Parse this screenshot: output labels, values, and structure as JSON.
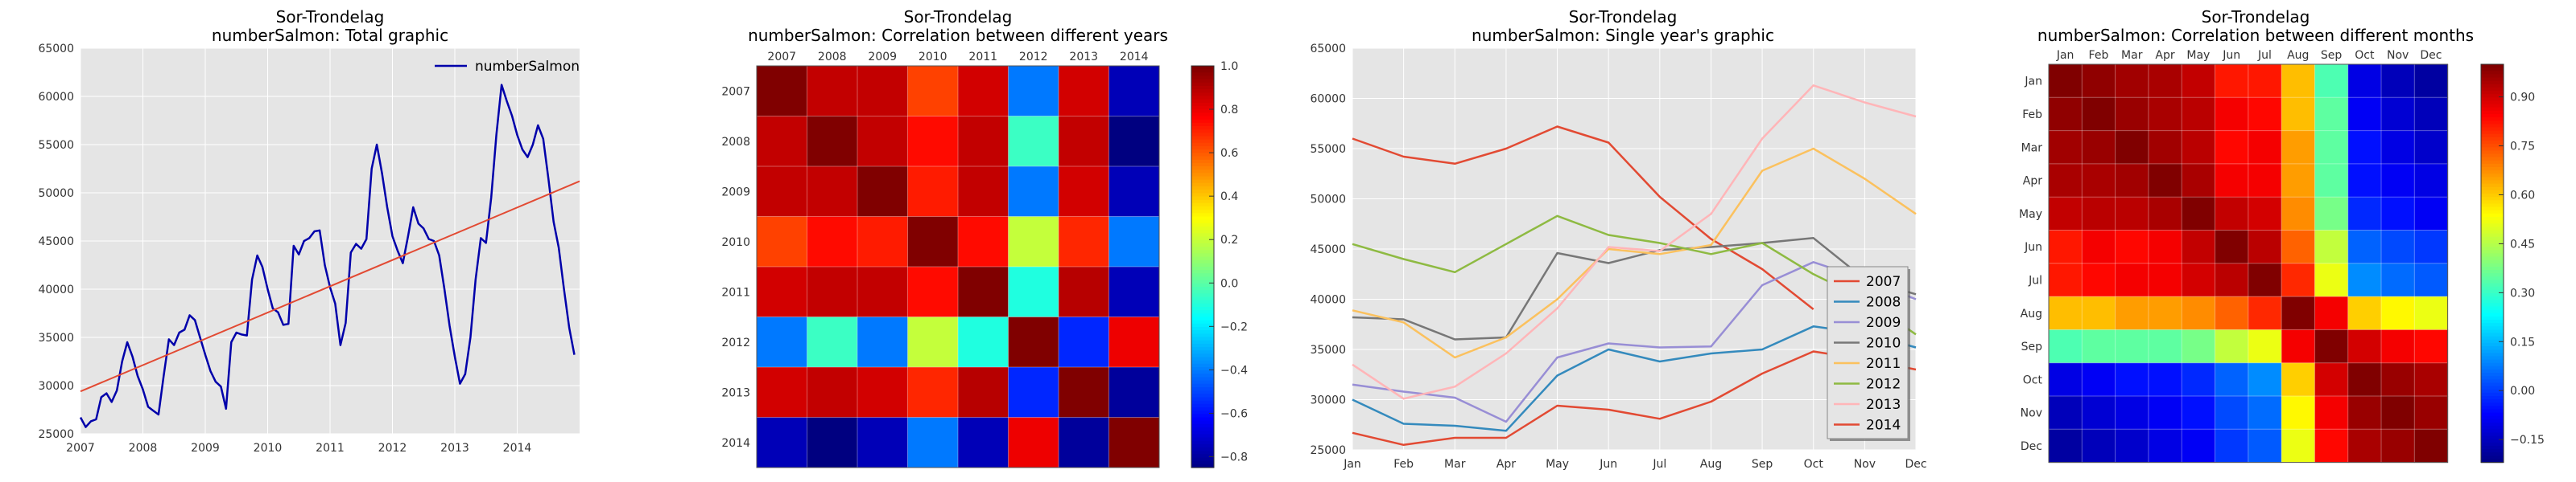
{
  "figure": {
    "panels": [
      {
        "title_line1": "Sor-Trondelag",
        "title_line2": "numberSalmon: Total graphic"
      },
      {
        "title_line1": "Sor-Trondelag",
        "title_line2": "numberSalmon: Correlation between different years"
      },
      {
        "title_line1": "Sor-Trondelag",
        "title_line2": "numberSalmon: Single year's graphic"
      },
      {
        "title_line1": "Sor-Trondelag",
        "title_line2": "numberSalmon: Correlation between different months"
      }
    ]
  },
  "chart_data": [
    {
      "type": "line",
      "title": "Sor-Trondelag\nnumberSalmon: Total graphic",
      "xlabel": "",
      "ylabel": "",
      "xlim": [
        2007,
        2015
      ],
      "ylim": [
        25000,
        65000
      ],
      "xticks": [
        "2007",
        "2008",
        "2009",
        "2010",
        "2011",
        "2012",
        "2013",
        "2014"
      ],
      "yticks": [
        "25000",
        "30000",
        "35000",
        "40000",
        "45000",
        "50000",
        "55000",
        "60000",
        "65000"
      ],
      "grid": true,
      "legend": {
        "position": "top-right",
        "entries": [
          "numberSalmon"
        ]
      },
      "colors": {
        "series": "#0000aa",
        "trend": "#e24a33",
        "background": "#e5e5e5"
      },
      "series": [
        {
          "name": "numberSalmon",
          "x_start": 2007,
          "step": 0.08333,
          "values": [
            26700,
            25700,
            26300,
            26500,
            28800,
            29200,
            28300,
            29500,
            32500,
            34500,
            33000,
            31000,
            29600,
            27800,
            27400,
            27000,
            31000,
            34800,
            34200,
            35500,
            35800,
            37300,
            36800,
            35000,
            33200,
            31500,
            30400,
            29900,
            27600,
            34500,
            35500,
            35300,
            35200,
            41000,
            43500,
            42300,
            40000,
            38000,
            37600,
            36300,
            36400,
            44500,
            43600,
            45000,
            45300,
            46000,
            46100,
            42500,
            40200,
            38500,
            34200,
            36500,
            43800,
            44700,
            44200,
            45200,
            52500,
            55000,
            52000,
            48500,
            45500,
            44000,
            42700,
            45500,
            48500,
            46800,
            46300,
            45200,
            45000,
            43500,
            40000,
            36200,
            33000,
            30200,
            31200,
            35000,
            41000,
            45300,
            44800,
            49500,
            56000,
            61200,
            59500,
            58000,
            56000,
            54500,
            53700,
            55000,
            57000,
            55600,
            51500,
            47000,
            44300,
            40000,
            36000,
            33200
          ]
        },
        {
          "name": "trend",
          "x": [
            2007,
            2015
          ],
          "values": [
            29400,
            51200
          ]
        }
      ]
    },
    {
      "type": "heatmap",
      "title": "Sor-Trondelag\nnumberSalmon: Correlation between different years",
      "columns": [
        "2007",
        "2008",
        "2009",
        "2010",
        "2011",
        "2012",
        "2013",
        "2014"
      ],
      "rows": [
        "2007",
        "2008",
        "2009",
        "2010",
        "2011",
        "2012",
        "2013",
        "2014"
      ],
      "colorbar": {
        "min": -0.85,
        "max": 1.0,
        "ticks": [
          "1.0",
          "0.8",
          "0.6",
          "0.4",
          "0.2",
          "0.0",
          "−0.2",
          "−0.4",
          "−0.6",
          "−0.8"
        ],
        "tick_values": [
          1.0,
          0.8,
          0.6,
          0.4,
          0.2,
          0.0,
          -0.2,
          -0.4,
          -0.6,
          -0.8
        ]
      },
      "values": [
        [
          1.0,
          0.88,
          0.88,
          0.65,
          0.85,
          -0.4,
          0.85,
          -0.75
        ],
        [
          0.88,
          1.0,
          0.88,
          0.75,
          0.88,
          -0.05,
          0.88,
          -0.85
        ],
        [
          0.88,
          0.88,
          1.0,
          0.72,
          0.88,
          -0.4,
          0.85,
          -0.75
        ],
        [
          0.65,
          0.75,
          0.72,
          1.0,
          0.75,
          0.2,
          0.7,
          -0.4
        ],
        [
          0.85,
          0.88,
          0.88,
          0.75,
          1.0,
          -0.1,
          0.9,
          -0.75
        ],
        [
          -0.4,
          -0.05,
          -0.4,
          0.2,
          -0.1,
          1.0,
          -0.55,
          0.8
        ],
        [
          0.85,
          0.88,
          0.85,
          0.7,
          0.9,
          -0.55,
          1.0,
          -0.8
        ],
        [
          -0.75,
          -0.85,
          -0.75,
          -0.4,
          -0.75,
          0.8,
          -0.8,
          1.0
        ]
      ]
    },
    {
      "type": "line",
      "title": "Sor-Trondelag\nnumberSalmon: Single year's graphic",
      "xlabel": "",
      "ylabel": "",
      "categories": [
        "Jan",
        "Feb",
        "Mar",
        "Apr",
        "May",
        "Jun",
        "Jul",
        "Aug",
        "Sep",
        "Oct",
        "Nov",
        "Dec"
      ],
      "ylim": [
        25000,
        65000
      ],
      "yticks": [
        "25000",
        "30000",
        "35000",
        "40000",
        "45000",
        "50000",
        "55000",
        "60000",
        "65000"
      ],
      "grid": true,
      "legend": {
        "position": "bottom-right"
      },
      "series": [
        {
          "name": "2007",
          "color": "#e24a33",
          "values": [
            56000,
            54200,
            53500,
            55000,
            57200,
            55600,
            50200,
            46000,
            43000,
            39000,
            null,
            null
          ]
        },
        {
          "name": "2008",
          "color": "#348abd",
          "values": [
            30000,
            27600,
            27400,
            26900,
            32400,
            35000,
            33800,
            34600,
            35000,
            37300,
            36600,
            35200
          ]
        },
        {
          "name": "2009",
          "color": "#988ed5",
          "values": [
            31500,
            30800,
            30200,
            27800,
            34200,
            35600,
            35200,
            35300,
            41400,
            43700,
            42000,
            40000
          ]
        },
        {
          "name": "2010",
          "color": "#777777",
          "values": [
            38200,
            38000,
            36000,
            36200,
            44600,
            43600,
            44900,
            45200,
            45600,
            46100,
            42000,
            40500
          ]
        },
        {
          "name": "2011",
          "color": "#fbc15e",
          "values": [
            38900,
            37700,
            34200,
            36200,
            40000,
            45000,
            44500,
            45400,
            52800,
            55000,
            52000,
            48500
          ]
        },
        {
          "name": "2012",
          "color": "#8eba42",
          "values": [
            45500,
            44000,
            42700,
            45500,
            48300,
            46400,
            45600,
            44500,
            45600,
            42500,
            40000,
            36500
          ]
        },
        {
          "name": "2013",
          "color": "#ffb5b8",
          "values": [
            33500,
            30100,
            31300,
            34600,
            39100,
            45200,
            44800,
            48500,
            56000,
            61300,
            59600,
            58200
          ]
        },
        {
          "name": "2014",
          "color": "#e24a33",
          "values": [
            26700,
            25500,
            26200,
            26200,
            29400,
            29000,
            28100,
            29800,
            32600,
            34800,
            34000,
            33000
          ]
        }
      ]
    },
    {
      "type": "heatmap",
      "title": "Sor-Trondelag\nnumberSalmon: Correlation between different months",
      "columns": [
        "Jan",
        "Feb",
        "Mar",
        "Apr",
        "May",
        "Jun",
        "Jul",
        "Aug",
        "Sep",
        "Oct",
        "Nov",
        "Dec"
      ],
      "rows": [
        "Jan",
        "Feb",
        "Mar",
        "Apr",
        "May",
        "Jun",
        "Jul",
        "Aug",
        "Sep",
        "Oct",
        "Nov",
        "Dec"
      ],
      "colorbar": {
        "min": -0.22,
        "max": 1.0,
        "ticks": [
          "0.90",
          "0.75",
          "0.60",
          "0.45",
          "0.30",
          "0.15",
          "0.00",
          "−0.15"
        ],
        "tick_values": [
          0.9,
          0.75,
          0.6,
          0.45,
          0.3,
          0.15,
          0.0,
          -0.15
        ]
      },
      "values": [
        [
          1.0,
          0.98,
          0.96,
          0.95,
          0.92,
          0.82,
          0.82,
          0.62,
          0.33,
          -0.1,
          -0.15,
          -0.18
        ],
        [
          0.98,
          1.0,
          0.97,
          0.95,
          0.93,
          0.86,
          0.84,
          0.62,
          0.35,
          -0.08,
          -0.12,
          -0.15
        ],
        [
          0.96,
          0.97,
          1.0,
          0.96,
          0.93,
          0.84,
          0.86,
          0.66,
          0.35,
          -0.05,
          -0.1,
          -0.13
        ],
        [
          0.95,
          0.95,
          0.96,
          1.0,
          0.95,
          0.86,
          0.86,
          0.66,
          0.35,
          -0.05,
          -0.08,
          -0.1
        ],
        [
          0.92,
          0.93,
          0.93,
          0.95,
          1.0,
          0.92,
          0.9,
          0.68,
          0.38,
          -0.02,
          -0.05,
          -0.08
        ],
        [
          0.82,
          0.86,
          0.84,
          0.86,
          0.92,
          1.0,
          0.93,
          0.73,
          0.47,
          0.05,
          0.02,
          0.0
        ],
        [
          0.82,
          0.84,
          0.86,
          0.86,
          0.9,
          0.93,
          1.0,
          0.8,
          0.52,
          0.1,
          0.06,
          0.04
        ],
        [
          0.62,
          0.62,
          0.66,
          0.66,
          0.68,
          0.73,
          0.8,
          1.0,
          0.86,
          0.6,
          0.55,
          0.52
        ],
        [
          0.33,
          0.35,
          0.35,
          0.35,
          0.38,
          0.47,
          0.52,
          0.86,
          1.0,
          0.9,
          0.86,
          0.84
        ],
        [
          -0.1,
          -0.08,
          -0.05,
          -0.05,
          -0.02,
          0.05,
          0.1,
          0.6,
          0.9,
          1.0,
          0.97,
          0.95
        ],
        [
          -0.15,
          -0.12,
          -0.1,
          -0.08,
          -0.05,
          0.02,
          0.06,
          0.55,
          0.86,
          0.97,
          1.0,
          0.97
        ],
        [
          -0.18,
          -0.15,
          -0.13,
          -0.1,
          -0.08,
          0.0,
          0.04,
          0.52,
          0.84,
          0.95,
          0.97,
          1.0
        ]
      ]
    }
  ]
}
